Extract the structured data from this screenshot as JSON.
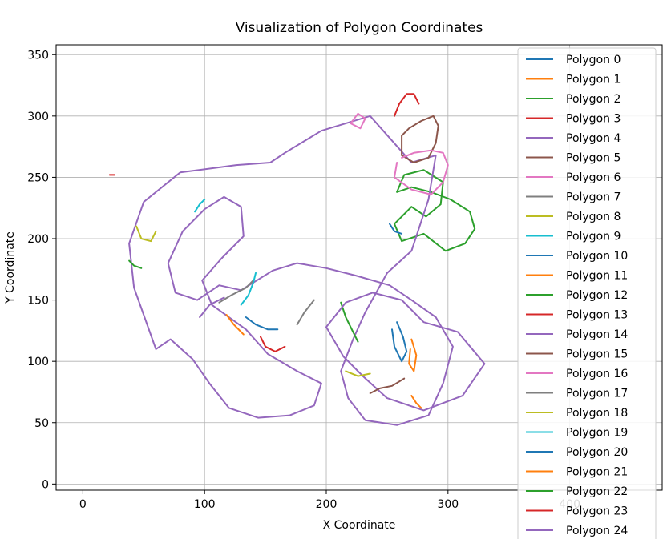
{
  "chart_data": {
    "type": "line",
    "title": "Visualization of Polygon Coordinates",
    "xlabel": "X Coordinate",
    "ylabel": "Y Coordinate",
    "xlim": [
      -22,
      476
    ],
    "ylim": [
      -5,
      358
    ],
    "xticks": [
      0,
      100,
      200,
      300,
      400
    ],
    "yticks": [
      0,
      50,
      100,
      150,
      200,
      250,
      300,
      350
    ],
    "grid": true,
    "legend_position": "right",
    "series": [
      {
        "name": "Polygon 0",
        "color": "#1f77b4",
        "points": [
          [
            258,
            132
          ],
          [
            263,
            120
          ],
          [
            266,
            108
          ],
          [
            262,
            100
          ],
          [
            256,
            112
          ],
          [
            254,
            126
          ]
        ]
      },
      {
        "name": "Polygon 1",
        "color": "#ff7f0e",
        "points": [
          [
            270,
            118
          ],
          [
            274,
            105
          ],
          [
            272,
            92
          ],
          [
            268,
            98
          ],
          [
            269,
            110
          ]
        ]
      },
      {
        "name": "Polygon 2",
        "color": "#2ca02c",
        "points": [
          [
            258,
            238
          ],
          [
            264,
            252
          ],
          [
            280,
            256
          ],
          [
            296,
            246
          ],
          [
            294,
            228
          ],
          [
            282,
            218
          ],
          [
            270,
            226
          ],
          [
            256,
            212
          ],
          [
            262,
            198
          ],
          [
            280,
            204
          ],
          [
            298,
            190
          ],
          [
            314,
            196
          ],
          [
            322,
            208
          ],
          [
            318,
            222
          ],
          [
            302,
            232
          ],
          [
            286,
            238
          ],
          [
            270,
            242
          ],
          [
            258,
            238
          ]
        ]
      },
      {
        "name": "Polygon 3",
        "color": "#d62728",
        "points": [
          [
            256,
            300
          ],
          [
            260,
            310
          ],
          [
            266,
            318
          ],
          [
            272,
            318
          ],
          [
            276,
            310
          ]
        ]
      },
      {
        "name": "Polygon 4",
        "color": "#9467bd",
        "points": [
          [
            60,
            110
          ],
          [
            42,
            160
          ],
          [
            38,
            196
          ],
          [
            50,
            230
          ],
          [
            80,
            254
          ],
          [
            126,
            260
          ],
          [
            154,
            262
          ],
          [
            166,
            270
          ],
          [
            196,
            288
          ],
          [
            236,
            300
          ],
          [
            270,
            262
          ],
          [
            290,
            268
          ],
          [
            284,
            232
          ],
          [
            270,
            190
          ],
          [
            250,
            172
          ],
          [
            232,
            140
          ],
          [
            222,
            118
          ],
          [
            212,
            92
          ],
          [
            218,
            70
          ],
          [
            232,
            52
          ],
          [
            258,
            48
          ],
          [
            284,
            56
          ],
          [
            296,
            82
          ],
          [
            304,
            112
          ],
          [
            290,
            136
          ],
          [
            270,
            150
          ],
          [
            252,
            162
          ],
          [
            224,
            170
          ],
          [
            200,
            176
          ],
          [
            176,
            180
          ],
          [
            156,
            174
          ],
          [
            130,
            158
          ],
          [
            112,
            162
          ],
          [
            94,
            150
          ],
          [
            76,
            156
          ],
          [
            70,
            180
          ],
          [
            82,
            206
          ],
          [
            100,
            224
          ],
          [
            116,
            234
          ],
          [
            130,
            226
          ],
          [
            132,
            202
          ],
          [
            114,
            184
          ],
          [
            98,
            166
          ],
          [
            106,
            146
          ],
          [
            134,
            126
          ],
          [
            152,
            106
          ],
          [
            176,
            92
          ],
          [
            196,
            82
          ],
          [
            190,
            64
          ],
          [
            170,
            56
          ],
          [
            144,
            54
          ],
          [
            120,
            62
          ],
          [
            104,
            82
          ],
          [
            90,
            102
          ],
          [
            72,
            118
          ],
          [
            60,
            110
          ]
        ]
      },
      {
        "name": "Polygon 5",
        "color": "#8c564b",
        "points": [
          [
            262,
            268
          ],
          [
            272,
            262
          ],
          [
            284,
            266
          ],
          [
            290,
            278
          ],
          [
            292,
            292
          ],
          [
            288,
            300
          ],
          [
            278,
            296
          ],
          [
            268,
            290
          ],
          [
            262,
            284
          ],
          [
            262,
            268
          ]
        ]
      },
      {
        "name": "Polygon 6",
        "color": "#e377c2",
        "points": [
          [
            258,
            262
          ],
          [
            256,
            250
          ],
          [
            270,
            240
          ],
          [
            286,
            236
          ],
          [
            296,
            246
          ],
          [
            300,
            260
          ],
          [
            296,
            270
          ],
          [
            286,
            272
          ],
          [
            272,
            270
          ],
          [
            262,
            266
          ]
        ]
      },
      {
        "name": "Polygon 7",
        "color": "#7f7f7f",
        "points": [
          [
            112,
            148
          ],
          [
            122,
            154
          ],
          [
            134,
            160
          ],
          [
            140,
            166
          ]
        ]
      },
      {
        "name": "Polygon 8",
        "color": "#bcbd22",
        "points": [
          [
            44,
            210
          ],
          [
            48,
            200
          ],
          [
            56,
            198
          ],
          [
            60,
            206
          ]
        ]
      },
      {
        "name": "Polygon 9",
        "color": "#17becf",
        "points": [
          [
            130,
            146
          ],
          [
            136,
            154
          ],
          [
            140,
            164
          ],
          [
            142,
            172
          ]
        ]
      },
      {
        "name": "Polygon 10",
        "color": "#1f77b4",
        "points": [
          [
            134,
            136
          ],
          [
            142,
            130
          ],
          [
            152,
            126
          ],
          [
            160,
            126
          ]
        ]
      },
      {
        "name": "Polygon 11",
        "color": "#ff7f0e",
        "points": [
          [
            118,
            138
          ],
          [
            124,
            130
          ],
          [
            132,
            122
          ]
        ]
      },
      {
        "name": "Polygon 12",
        "color": "#2ca02c",
        "points": [
          [
            212,
            148
          ],
          [
            216,
            136
          ],
          [
            222,
            124
          ],
          [
            226,
            116
          ]
        ]
      },
      {
        "name": "Polygon 13",
        "color": "#d62728",
        "points": [
          [
            146,
            120
          ],
          [
            150,
            112
          ],
          [
            158,
            108
          ],
          [
            166,
            112
          ]
        ]
      },
      {
        "name": "Polygon 14",
        "color": "#9467bd",
        "points": [
          [
            200,
            128
          ],
          [
            216,
            148
          ],
          [
            238,
            156
          ],
          [
            262,
            150
          ],
          [
            280,
            132
          ],
          [
            308,
            124
          ],
          [
            330,
            98
          ],
          [
            312,
            72
          ],
          [
            280,
            60
          ],
          [
            250,
            70
          ],
          [
            230,
            88
          ],
          [
            214,
            104
          ],
          [
            200,
            128
          ]
        ]
      },
      {
        "name": "Polygon 15",
        "color": "#8c564b",
        "points": [
          [
            236,
            74
          ],
          [
            244,
            78
          ],
          [
            254,
            80
          ],
          [
            264,
            86
          ]
        ]
      },
      {
        "name": "Polygon 16",
        "color": "#e377c2",
        "points": [
          [
            220,
            294
          ],
          [
            226,
            302
          ],
          [
            232,
            298
          ],
          [
            228,
            290
          ],
          [
            220,
            294
          ]
        ]
      },
      {
        "name": "Polygon 17",
        "color": "#7f7f7f",
        "points": [
          [
            176,
            130
          ],
          [
            182,
            140
          ],
          [
            190,
            150
          ]
        ]
      },
      {
        "name": "Polygon 18",
        "color": "#bcbd22",
        "points": [
          [
            216,
            92
          ],
          [
            226,
            88
          ],
          [
            236,
            90
          ]
        ]
      },
      {
        "name": "Polygon 19",
        "color": "#17becf",
        "points": [
          [
            92,
            222
          ],
          [
            96,
            228
          ],
          [
            100,
            232
          ]
        ]
      },
      {
        "name": "Polygon 20",
        "color": "#1f77b4",
        "points": [
          [
            252,
            212
          ],
          [
            256,
            206
          ],
          [
            262,
            204
          ]
        ]
      },
      {
        "name": "Polygon 21",
        "color": "#ff7f0e",
        "points": [
          [
            270,
            72
          ],
          [
            274,
            66
          ],
          [
            278,
            62
          ]
        ]
      },
      {
        "name": "Polygon 22",
        "color": "#2ca02c",
        "points": [
          [
            38,
            182
          ],
          [
            42,
            178
          ],
          [
            48,
            176
          ]
        ]
      },
      {
        "name": "Polygon 23",
        "color": "#d62728",
        "points": [
          [
            22,
            252
          ],
          [
            26,
            252
          ]
        ]
      },
      {
        "name": "Polygon 24",
        "color": "#9467bd",
        "points": [
          [
            96,
            136
          ],
          [
            104,
            146
          ],
          [
            116,
            152
          ]
        ]
      }
    ]
  }
}
